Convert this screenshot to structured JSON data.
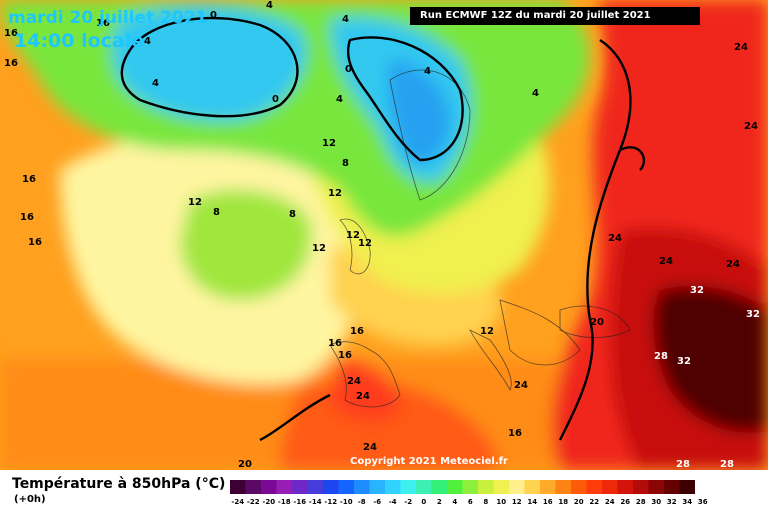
{
  "header": {
    "date": "mardi 20 juillet 2021",
    "time": "14:00 locale",
    "run": "Run ECMWF 12Z du mardi 20 juillet 2021"
  },
  "map": {
    "contour_labels": [
      "0",
      "4",
      "16",
      "16",
      "4",
      "0",
      "4",
      "4",
      "4",
      "4",
      "0",
      "4",
      "12",
      "8",
      "12",
      "8",
      "8",
      "12",
      "12",
      "12",
      "12",
      "16",
      "16",
      "24",
      "24",
      "24",
      "24",
      "24",
      "24",
      "24",
      "24",
      "32",
      "32",
      "32",
      "28",
      "28",
      "28",
      "20",
      "20",
      "12",
      "16",
      "16",
      "16",
      "16",
      "24",
      "16",
      "16"
    ]
  },
  "copyright": "Copyright 2021 Meteociel.fr",
  "legend": {
    "title": "Température à 850hPa (°C)",
    "subtitle": "(+0h)",
    "ticks": [
      "-24",
      "-22",
      "-20",
      "-18",
      "-16",
      "-14",
      "-12",
      "-10",
      "-8",
      "-6",
      "-4",
      "-2",
      "0",
      "2",
      "4",
      "6",
      "8",
      "10",
      "12",
      "14",
      "16",
      "18",
      "20",
      "22",
      "24",
      "26",
      "28",
      "30",
      "32",
      "34",
      "36"
    ],
    "colors": [
      "#3c0032",
      "#5a0a64",
      "#7a0a96",
      "#961eb4",
      "#6e28c8",
      "#463cdc",
      "#1e46f0",
      "#1464ff",
      "#1e8cff",
      "#28b4ff",
      "#32d2ff",
      "#3cf0f0",
      "#3cf0b4",
      "#32f078",
      "#50f03c",
      "#8cf03c",
      "#c8f03c",
      "#f0f050",
      "#fff08c",
      "#ffd250",
      "#ffaa28",
      "#ff8214",
      "#ff5a0a",
      "#ff3c0a",
      "#f0280a",
      "#d2140a",
      "#b40a0a",
      "#8c0505",
      "#640000",
      "#3c0000"
    ]
  }
}
